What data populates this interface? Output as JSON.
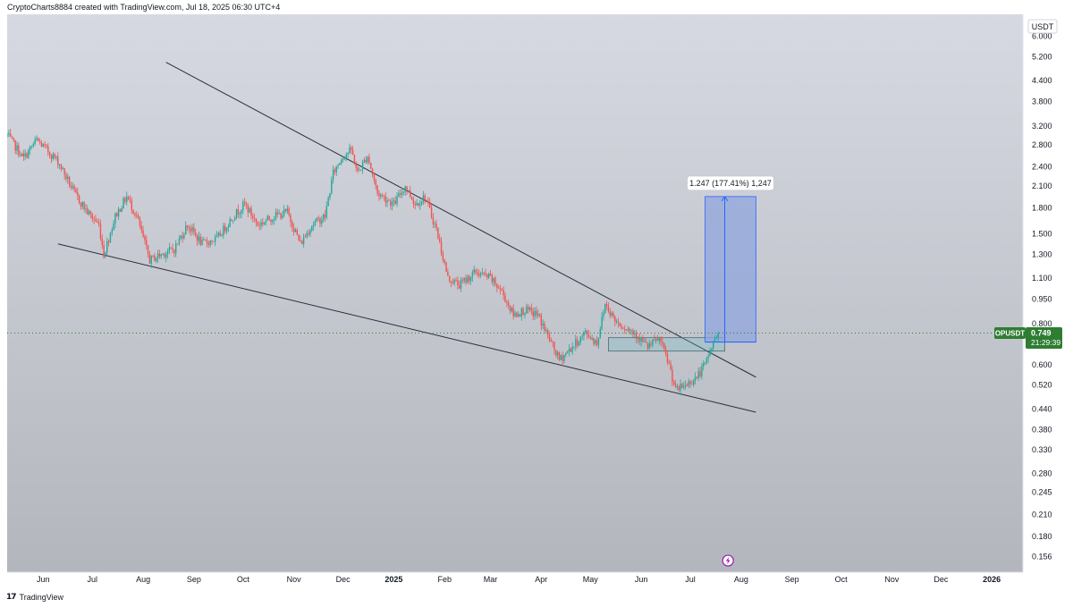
{
  "header": {
    "attribution": "CryptoCharts8884 created with TradingView.com, Jul 18, 2025 06:30 UTC+4"
  },
  "footer": {
    "brand": "TradingView",
    "brand_icon": "tradingview-logo-icon"
  },
  "colors": {
    "bull": "#26a69a",
    "bear": "#ef5350",
    "price_badge": "#2e7d32",
    "target_fill": "#8fa6dc",
    "target_line": "#2962ff",
    "trendline": "#2a2e39",
    "flash_icon": "#9c27b0"
  },
  "chart_data": {
    "type": "candlestick",
    "symbol": "OPUSDT",
    "currency": "USDT",
    "last_price": 0.749,
    "last_price_label": "0.749",
    "countdown": "21:29:39",
    "scale": "log",
    "ylim": [
      0.14,
      7.0
    ],
    "xlim": [
      "2024-05-10",
      "2026-01-20"
    ],
    "y_ticks": [
      "6.000",
      "5.200",
      "4.400",
      "3.800",
      "3.200",
      "2.800",
      "2.400",
      "2.100",
      "1.800",
      "1.500",
      "1.300",
      "1.100",
      "0.950",
      "0.800",
      "0.600",
      "0.520",
      "0.440",
      "0.380",
      "0.330",
      "0.280",
      "0.245",
      "0.210",
      "0.180",
      "0.156"
    ],
    "x_ticks": [
      {
        "label": "Jun",
        "date": "2024-06-01"
      },
      {
        "label": "Jul",
        "date": "2024-07-01"
      },
      {
        "label": "Aug",
        "date": "2024-08-01"
      },
      {
        "label": "Sep",
        "date": "2024-09-01"
      },
      {
        "label": "Oct",
        "date": "2024-10-01"
      },
      {
        "label": "Nov",
        "date": "2024-11-01"
      },
      {
        "label": "Dec",
        "date": "2024-12-01"
      },
      {
        "label": "2025",
        "date": "2025-01-01",
        "bold": true
      },
      {
        "label": "Feb",
        "date": "2025-02-01"
      },
      {
        "label": "Mar",
        "date": "2025-03-01"
      },
      {
        "label": "Apr",
        "date": "2025-04-01"
      },
      {
        "label": "May",
        "date": "2025-05-01"
      },
      {
        "label": "Jun",
        "date": "2025-06-01"
      },
      {
        "label": "Jul",
        "date": "2025-07-01"
      },
      {
        "label": "Aug",
        "date": "2025-08-01"
      },
      {
        "label": "Sep",
        "date": "2025-09-01"
      },
      {
        "label": "Oct",
        "date": "2025-10-01"
      },
      {
        "label": "Nov",
        "date": "2025-11-01"
      },
      {
        "label": "Dec",
        "date": "2025-12-01"
      },
      {
        "label": "2026",
        "date": "2026-01-01",
        "bold": true
      }
    ],
    "price_path": [
      [
        "2024-05-10",
        3.0
      ],
      [
        "2024-05-20",
        2.55
      ],
      [
        "2024-05-28",
        2.9
      ],
      [
        "2024-06-10",
        2.5
      ],
      [
        "2024-06-20",
        2.0
      ],
      [
        "2024-06-28",
        1.75
      ],
      [
        "2024-07-05",
        1.6
      ],
      [
        "2024-07-08",
        1.3
      ],
      [
        "2024-07-15",
        1.7
      ],
      [
        "2024-07-22",
        1.95
      ],
      [
        "2024-07-28",
        1.7
      ],
      [
        "2024-08-05",
        1.25
      ],
      [
        "2024-08-12",
        1.3
      ],
      [
        "2024-08-20",
        1.35
      ],
      [
        "2024-08-28",
        1.6
      ],
      [
        "2024-09-06",
        1.4
      ],
      [
        "2024-09-15",
        1.45
      ],
      [
        "2024-09-25",
        1.7
      ],
      [
        "2024-10-02",
        1.85
      ],
      [
        "2024-10-10",
        1.6
      ],
      [
        "2024-10-20",
        1.7
      ],
      [
        "2024-10-28",
        1.75
      ],
      [
        "2024-11-05",
        1.4
      ],
      [
        "2024-11-12",
        1.6
      ],
      [
        "2024-11-20",
        1.7
      ],
      [
        "2024-11-25",
        2.3
      ],
      [
        "2024-12-01",
        2.6
      ],
      [
        "2024-12-06",
        2.7
      ],
      [
        "2024-12-10",
        2.3
      ],
      [
        "2024-12-16",
        2.6
      ],
      [
        "2024-12-22",
        2.0
      ],
      [
        "2025-01-01",
        1.85
      ],
      [
        "2025-01-08",
        2.1
      ],
      [
        "2025-01-14",
        1.85
      ],
      [
        "2025-01-20",
        1.95
      ],
      [
        "2025-01-27",
        1.55
      ],
      [
        "2025-02-03",
        1.1
      ],
      [
        "2025-02-10",
        1.05
      ],
      [
        "2025-02-20",
        1.15
      ],
      [
        "2025-03-01",
        1.1
      ],
      [
        "2025-03-08",
        1.0
      ],
      [
        "2025-03-15",
        0.85
      ],
      [
        "2025-03-22",
        0.88
      ],
      [
        "2025-03-30",
        0.85
      ],
      [
        "2025-04-07",
        0.7
      ],
      [
        "2025-04-12",
        0.62
      ],
      [
        "2025-04-20",
        0.68
      ],
      [
        "2025-04-28",
        0.75
      ],
      [
        "2025-05-05",
        0.7
      ],
      [
        "2025-05-10",
        0.92
      ],
      [
        "2025-05-16",
        0.82
      ],
      [
        "2025-05-22",
        0.78
      ],
      [
        "2025-05-28",
        0.75
      ],
      [
        "2025-06-05",
        0.68
      ],
      [
        "2025-06-12",
        0.72
      ],
      [
        "2025-06-18",
        0.6
      ],
      [
        "2025-06-22",
        0.5
      ],
      [
        "2025-06-28",
        0.52
      ],
      [
        "2025-07-05",
        0.55
      ],
      [
        "2025-07-10",
        0.6
      ],
      [
        "2025-07-14",
        0.68
      ],
      [
        "2025-07-18",
        0.749
      ]
    ],
    "trendlines": [
      {
        "name": "upper-trendline",
        "points": [
          [
            "2024-08-15",
            5.0
          ],
          [
            "2025-08-10",
            0.55
          ]
        ]
      },
      {
        "name": "lower-trendline",
        "points": [
          [
            "2024-06-10",
            1.4
          ],
          [
            "2025-08-10",
            0.43
          ]
        ]
      }
    ],
    "last_price_line": {
      "value": 0.749,
      "style": "dotted"
    },
    "breakout_box": {
      "from": "2025-05-12",
      "to": "2025-07-22",
      "low": 0.66,
      "high": 0.725
    },
    "target_box": {
      "from": "2025-07-10",
      "to": "2025-08-10",
      "low": 0.703,
      "high": 1.95
    },
    "target_arrow": {
      "date": "2025-07-22",
      "from": 0.703,
      "to": 1.95
    },
    "annotation": "1.247 (177.41%) 1,247",
    "events": [
      {
        "date": "2025-07-24",
        "icon": "flash-icon"
      }
    ]
  }
}
